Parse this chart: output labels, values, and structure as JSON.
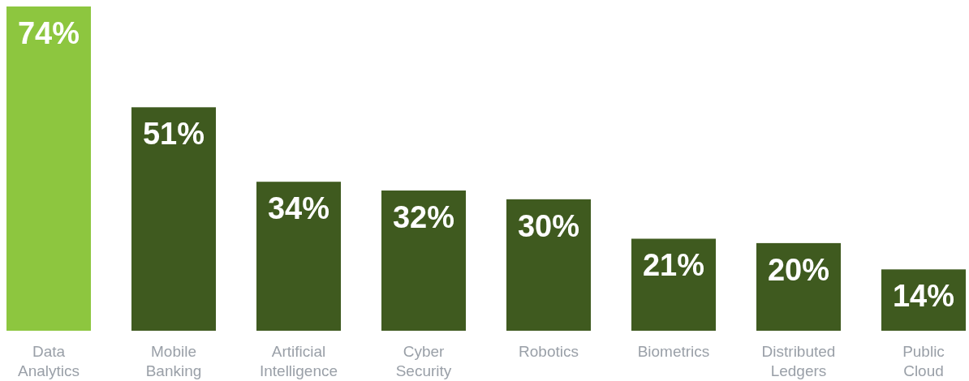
{
  "chart_data": {
    "type": "bar",
    "categories": [
      "Data Analytics",
      "Mobile Banking",
      "Artificial Intelligence",
      "Cyber Security",
      "Robotics",
      "Biometrics",
      "Distributed Ledgers",
      "Public Cloud"
    ],
    "values": [
      74,
      51,
      34,
      32,
      30,
      21,
      20,
      14
    ],
    "colors": [
      "#8dc63f",
      "#3f5a1f",
      "#3f5a1f",
      "#3f5a1f",
      "#3f5a1f",
      "#3f5a1f",
      "#3f5a1f",
      "#3f5a1f"
    ],
    "value_labels": [
      "74%",
      "51%",
      "34%",
      "32%",
      "30%",
      "21%",
      "20%",
      "14%"
    ]
  }
}
